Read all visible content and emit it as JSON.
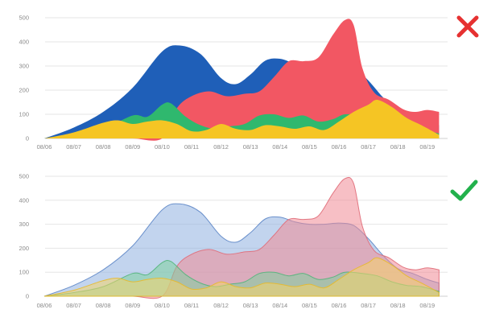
{
  "chart_data": [
    {
      "type": "area",
      "variant": "opaque",
      "verdict": "bad",
      "verdict_icon": "red-x-icon",
      "categories": [
        "08/06",
        "08/07",
        "08/08",
        "08/09",
        "08/10",
        "08/11",
        "08/12",
        "08/13",
        "08/14",
        "08/15",
        "08/16",
        "08/17",
        "08/18",
        "08/19"
      ],
      "yticks": [
        0,
        100,
        200,
        300,
        400,
        500
      ],
      "ylim": [
        0,
        500
      ],
      "grid": true,
      "series": [
        {
          "color": "#1f5fb8",
          "points": [
            [
              0,
              0
            ],
            [
              1,
              45
            ],
            [
              2,
              110
            ],
            [
              3,
              210
            ],
            [
              4,
              360
            ],
            [
              4.6,
              385
            ],
            [
              5.3,
              350
            ],
            [
              6,
              250
            ],
            [
              6.5,
              225
            ],
            [
              7,
              265
            ],
            [
              7.5,
              322
            ],
            [
              8,
              330
            ],
            [
              8.5,
              310
            ],
            [
              9,
              300
            ],
            [
              9.5,
              300
            ],
            [
              10,
              305
            ],
            [
              10.5,
              295
            ],
            [
              11,
              240
            ],
            [
              11.5,
              170
            ],
            [
              12,
              115
            ],
            [
              12.5,
              95
            ],
            [
              13,
              70
            ],
            [
              13.4,
              55
            ]
          ]
        },
        {
          "color": "#f25763",
          "points": [
            [
              0,
              0
            ],
            [
              1,
              0
            ],
            [
              2,
              0
            ],
            [
              3,
              0
            ],
            [
              4,
              0
            ],
            [
              4.5,
              125
            ],
            [
              5,
              175
            ],
            [
              5.6,
              195
            ],
            [
              6.2,
              175
            ],
            [
              6.8,
              185
            ],
            [
              7.3,
              195
            ],
            [
              7.8,
              255
            ],
            [
              8.3,
              320
            ],
            [
              8.8,
              320
            ],
            [
              9.3,
              335
            ],
            [
              9.8,
              430
            ],
            [
              10.2,
              490
            ],
            [
              10.5,
              470
            ],
            [
              10.8,
              290
            ],
            [
              11.2,
              190
            ],
            [
              11.7,
              160
            ],
            [
              12.2,
              120
            ],
            [
              12.6,
              110
            ],
            [
              13,
              118
            ],
            [
              13.4,
              110
            ]
          ]
        },
        {
          "color": "#2fb86e",
          "points": [
            [
              0,
              0
            ],
            [
              1,
              15
            ],
            [
              2,
              40
            ],
            [
              3,
              95
            ],
            [
              3.5,
              90
            ],
            [
              4,
              140
            ],
            [
              4.3,
              145
            ],
            [
              4.8,
              90
            ],
            [
              5.3,
              55
            ],
            [
              5.8,
              40
            ],
            [
              6.3,
              50
            ],
            [
              6.8,
              60
            ],
            [
              7.3,
              95
            ],
            [
              7.8,
              100
            ],
            [
              8.3,
              85
            ],
            [
              8.8,
              95
            ],
            [
              9.3,
              70
            ],
            [
              9.8,
              80
            ],
            [
              10.2,
              100
            ],
            [
              10.8,
              95
            ],
            [
              11.3,
              85
            ],
            [
              11.8,
              60
            ],
            [
              12.3,
              45
            ],
            [
              12.8,
              40
            ],
            [
              13.4,
              20
            ]
          ]
        },
        {
          "color": "#f5c524",
          "points": [
            [
              0,
              0
            ],
            [
              1,
              25
            ],
            [
              2,
              65
            ],
            [
              2.5,
              75
            ],
            [
              3,
              60
            ],
            [
              3.5,
              70
            ],
            [
              4,
              75
            ],
            [
              4.5,
              60
            ],
            [
              5,
              30
            ],
            [
              5.5,
              35
            ],
            [
              6,
              60
            ],
            [
              6.5,
              40
            ],
            [
              7,
              35
            ],
            [
              7.5,
              55
            ],
            [
              8,
              50
            ],
            [
              8.5,
              40
            ],
            [
              9,
              50
            ],
            [
              9.5,
              35
            ],
            [
              10,
              70
            ],
            [
              10.5,
              110
            ],
            [
              11,
              140
            ],
            [
              11.3,
              160
            ],
            [
              11.8,
              130
            ],
            [
              12.3,
              85
            ],
            [
              12.8,
              55
            ],
            [
              13.4,
              15
            ]
          ]
        }
      ]
    },
    {
      "type": "area",
      "variant": "transparent",
      "verdict": "good",
      "verdict_icon": "green-check-icon",
      "categories": [
        "08/06",
        "08/07",
        "08/08",
        "08/09",
        "08/10",
        "08/11",
        "08/12",
        "08/13",
        "08/14",
        "08/15",
        "08/16",
        "08/17",
        "08/18",
        "08/19"
      ],
      "yticks": [
        0,
        100,
        200,
        300,
        400,
        500
      ],
      "ylim": [
        0,
        500
      ],
      "grid": true,
      "series": [
        {
          "color": "#8fb0e0",
          "stroke": "#5d86c6",
          "points": [
            [
              0,
              0
            ],
            [
              1,
              45
            ],
            [
              2,
              110
            ],
            [
              3,
              210
            ],
            [
              4,
              360
            ],
            [
              4.6,
              385
            ],
            [
              5.3,
              350
            ],
            [
              6,
              250
            ],
            [
              6.5,
              225
            ],
            [
              7,
              265
            ],
            [
              7.5,
              322
            ],
            [
              8,
              330
            ],
            [
              8.5,
              310
            ],
            [
              9,
              300
            ],
            [
              9.5,
              300
            ],
            [
              10,
              305
            ],
            [
              10.5,
              295
            ],
            [
              11,
              240
            ],
            [
              11.5,
              170
            ],
            [
              12,
              115
            ],
            [
              12.5,
              95
            ],
            [
              13,
              70
            ],
            [
              13.4,
              55
            ]
          ]
        },
        {
          "color": "#f08a95",
          "stroke": "#e06b78",
          "points": [
            [
              0,
              0
            ],
            [
              1,
              0
            ],
            [
              2,
              0
            ],
            [
              3,
              0
            ],
            [
              4,
              0
            ],
            [
              4.5,
              125
            ],
            [
              5,
              175
            ],
            [
              5.6,
              195
            ],
            [
              6.2,
              175
            ],
            [
              6.8,
              185
            ],
            [
              7.3,
              195
            ],
            [
              7.8,
              255
            ],
            [
              8.3,
              320
            ],
            [
              8.8,
              320
            ],
            [
              9.3,
              335
            ],
            [
              9.8,
              430
            ],
            [
              10.2,
              490
            ],
            [
              10.5,
              470
            ],
            [
              10.8,
              290
            ],
            [
              11.2,
              190
            ],
            [
              11.7,
              160
            ],
            [
              12.2,
              120
            ],
            [
              12.6,
              110
            ],
            [
              13,
              118
            ],
            [
              13.4,
              110
            ]
          ]
        },
        {
          "color": "#7fcf9e",
          "stroke": "#52b47a",
          "points": [
            [
              0,
              0
            ],
            [
              1,
              15
            ],
            [
              2,
              40
            ],
            [
              3,
              95
            ],
            [
              3.5,
              90
            ],
            [
              4,
              140
            ],
            [
              4.3,
              145
            ],
            [
              4.8,
              90
            ],
            [
              5.3,
              55
            ],
            [
              5.8,
              40
            ],
            [
              6.3,
              50
            ],
            [
              6.8,
              60
            ],
            [
              7.3,
              95
            ],
            [
              7.8,
              100
            ],
            [
              8.3,
              85
            ],
            [
              8.8,
              95
            ],
            [
              9.3,
              70
            ],
            [
              9.8,
              80
            ],
            [
              10.2,
              100
            ],
            [
              10.8,
              95
            ],
            [
              11.3,
              85
            ],
            [
              11.8,
              60
            ],
            [
              12.3,
              45
            ],
            [
              12.8,
              40
            ],
            [
              13.4,
              20
            ]
          ]
        },
        {
          "color": "#f6d36a",
          "stroke": "#e8b92a",
          "points": [
            [
              0,
              0
            ],
            [
              1,
              25
            ],
            [
              2,
              65
            ],
            [
              2.5,
              75
            ],
            [
              3,
              60
            ],
            [
              3.5,
              70
            ],
            [
              4,
              75
            ],
            [
              4.5,
              60
            ],
            [
              5,
              30
            ],
            [
              5.5,
              35
            ],
            [
              6,
              60
            ],
            [
              6.5,
              40
            ],
            [
              7,
              35
            ],
            [
              7.5,
              55
            ],
            [
              8,
              50
            ],
            [
              8.5,
              40
            ],
            [
              9,
              50
            ],
            [
              9.5,
              35
            ],
            [
              10,
              70
            ],
            [
              10.5,
              110
            ],
            [
              11,
              140
            ],
            [
              11.3,
              160
            ],
            [
              11.8,
              130
            ],
            [
              12.3,
              85
            ],
            [
              12.8,
              55
            ],
            [
              13.4,
              15
            ]
          ]
        }
      ]
    }
  ],
  "colors": {
    "bad": "#e63131",
    "good": "#22b14c"
  }
}
